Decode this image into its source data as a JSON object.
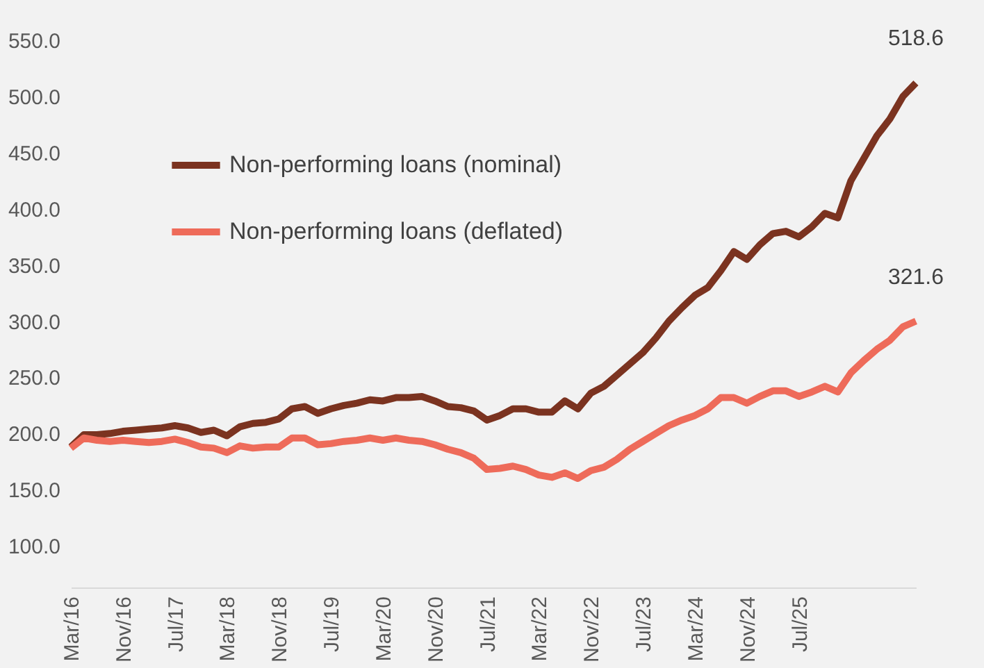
{
  "chart_data": {
    "type": "line",
    "categories": [
      "Mar/16",
      null,
      null,
      null,
      "Nov/16",
      null,
      null,
      null,
      "Jul/17",
      null,
      null,
      null,
      "Mar/18",
      null,
      null,
      null,
      "Nov/18",
      null,
      null,
      null,
      "Jul/19",
      null,
      null,
      null,
      "Mar/20",
      null,
      null,
      null,
      "Nov/20",
      null,
      null,
      null,
      "Jul/21",
      null,
      null,
      null,
      "Mar/22",
      null,
      null,
      null,
      "Nov/22",
      null,
      null,
      null,
      "Jul/23",
      null,
      null,
      null,
      "Mar/24",
      null,
      null,
      null,
      "Nov/24",
      null,
      null,
      null,
      "Jul/25",
      null,
      null,
      null,
      null,
      null,
      null,
      null,
      null,
      null
    ],
    "series": [
      {
        "name": "Non-performing loans (nominal)",
        "color": "#7b3320",
        "values": [
          188,
          199,
          199,
          200,
          202,
          203,
          204,
          205,
          207,
          205,
          201,
          203,
          198,
          206,
          209,
          210,
          213,
          222,
          224,
          218,
          222,
          225,
          227,
          230,
          229,
          232,
          232,
          233,
          229,
          224,
          223,
          220,
          212,
          216,
          222,
          222,
          219,
          219,
          229,
          222,
          236,
          242,
          252,
          262,
          272,
          285,
          300,
          312,
          323,
          330,
          345,
          362,
          355,
          368,
          378,
          380,
          375,
          384,
          396,
          392,
          425,
          445,
          465,
          480,
          500,
          512
        ]
      },
      {
        "name": "Non-performing loans (deflated)",
        "color": "#ee6b5a",
        "values": [
          187,
          196,
          194,
          193,
          194,
          193,
          192,
          193,
          195,
          192,
          188,
          187,
          183,
          189,
          187,
          188,
          188,
          196,
          196,
          190,
          191,
          193,
          194,
          196,
          194,
          196,
          194,
          193,
          190,
          186,
          183,
          178,
          168,
          169,
          171,
          168,
          163,
          161,
          165,
          160,
          167,
          170,
          177,
          186,
          193,
          200,
          207,
          212,
          216,
          222,
          232,
          232,
          227,
          233,
          238,
          238,
          233,
          237,
          242,
          237,
          254,
          265,
          275,
          283,
          295,
          300
        ]
      }
    ],
    "annotations": [
      "518.6",
      "321.6"
    ],
    "ylim": [
      63,
      550
    ],
    "yticks": [
      {
        "value": 100,
        "label": "100.0"
      },
      {
        "value": 150,
        "label": "150.0"
      },
      {
        "value": 200,
        "label": "200.0"
      },
      {
        "value": 250,
        "label": "250.0"
      },
      {
        "value": 300,
        "label": "300.0"
      },
      {
        "value": 350,
        "label": "350.0"
      },
      {
        "value": 400,
        "label": "400.0"
      },
      {
        "value": 450,
        "label": "450.0"
      },
      {
        "value": 500,
        "label": "500.0"
      },
      {
        "value": 550,
        "label": "550.0"
      }
    ],
    "legend": "top left",
    "grid": false,
    "marker": "none",
    "line_style": "solid"
  }
}
